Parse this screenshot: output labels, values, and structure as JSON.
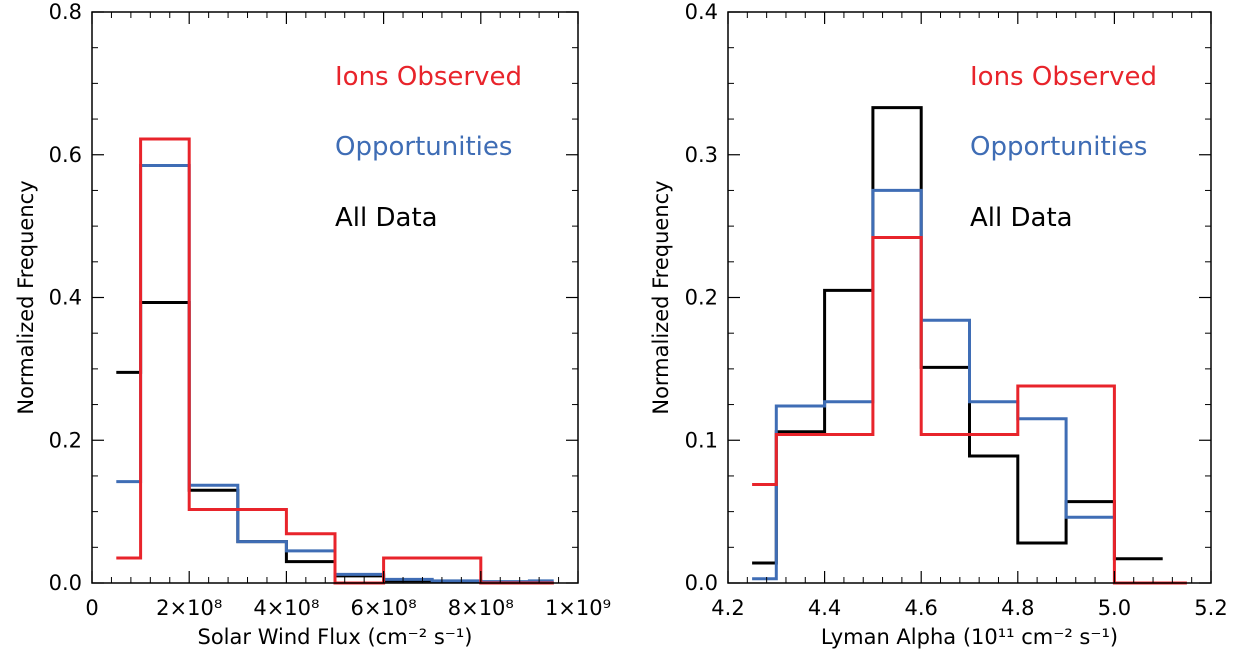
{
  "chart_data": [
    {
      "type": "step-histogram",
      "xlabel": "Solar Wind Flux (cm⁻² s⁻¹)",
      "ylabel": "Normalized Frequency",
      "xlim": [
        0,
        1000000000
      ],
      "ylim": [
        0,
        0.8
      ],
      "xticks": [
        {
          "value": 0,
          "label": "0"
        },
        {
          "value": 200000000,
          "label": "2×10⁸"
        },
        {
          "value": 400000000,
          "label": "4×10⁸"
        },
        {
          "value": 600000000,
          "label": "6×10⁸"
        },
        {
          "value": 800000000,
          "label": "8×10⁸"
        },
        {
          "value": 1000000000,
          "label": "1×10⁹"
        }
      ],
      "yticks": [
        {
          "value": 0,
          "label": "0.0"
        },
        {
          "value": 0.2,
          "label": "0.2"
        },
        {
          "value": 0.4,
          "label": "0.4"
        },
        {
          "value": 0.6,
          "label": "0.6"
        },
        {
          "value": 0.8,
          "label": "0.8"
        }
      ],
      "legend": [
        "Ions Observed",
        "Opportunities",
        "All Data"
      ],
      "bin_edges": [
        50000000,
        100000000,
        200000000,
        300000000,
        400000000,
        500000000,
        600000000,
        700000000,
        800000000,
        900000000,
        950000000
      ],
      "series": [
        {
          "name": "All Data",
          "color": "#000000",
          "values": [
            0.295,
            0.393,
            0.13,
            0.058,
            0.03,
            0.01,
            0.003,
            0.002,
            0.001,
            0.0
          ]
        },
        {
          "name": "Opportunities",
          "color": "#3f6db5",
          "values": [
            0.142,
            0.585,
            0.137,
            0.058,
            0.045,
            0.012,
            0.005,
            0.003,
            0.002,
            0.003
          ]
        },
        {
          "name": "Ions Observed",
          "color": "#e8242b",
          "values": [
            0.035,
            0.622,
            0.103,
            0.103,
            0.069,
            0.0,
            0.035,
            0.035,
            0.0,
            0.0
          ]
        }
      ]
    },
    {
      "type": "step-histogram",
      "xlabel": "Lyman Alpha (10¹¹ cm⁻² s⁻¹)",
      "ylabel": "Normalized Frequency",
      "xlim": [
        4.2,
        5.2
      ],
      "ylim": [
        0,
        0.4
      ],
      "xticks": [
        {
          "value": 4.2,
          "label": "4.2"
        },
        {
          "value": 4.4,
          "label": "4.4"
        },
        {
          "value": 4.6,
          "label": "4.6"
        },
        {
          "value": 4.8,
          "label": "4.8"
        },
        {
          "value": 5.0,
          "label": "5.0"
        },
        {
          "value": 5.2,
          "label": "5.2"
        }
      ],
      "yticks": [
        {
          "value": 0,
          "label": "0.0"
        },
        {
          "value": 0.1,
          "label": "0.1"
        },
        {
          "value": 0.2,
          "label": "0.2"
        },
        {
          "value": 0.3,
          "label": "0.3"
        },
        {
          "value": 0.4,
          "label": "0.4"
        }
      ],
      "legend": [
        "Ions Observed",
        "Opportunities",
        "All Data"
      ],
      "series": [
        {
          "name": "All Data",
          "color": "#000000",
          "bin_edges": [
            4.25,
            4.3,
            4.4,
            4.5,
            4.6,
            4.7,
            4.8,
            4.9,
            5.0,
            5.1
          ],
          "values": [
            0.014,
            0.106,
            0.205,
            0.333,
            0.151,
            0.089,
            0.028,
            0.057,
            0.017
          ]
        },
        {
          "name": "Opportunities",
          "color": "#3f6db5",
          "bin_edges": [
            4.25,
            4.3,
            4.4,
            4.5,
            4.6,
            4.7,
            4.8,
            4.9,
            5.0
          ],
          "values": [
            0.003,
            0.124,
            0.127,
            0.275,
            0.184,
            0.127,
            0.115,
            0.046
          ]
        },
        {
          "name": "Ions Observed",
          "color": "#e8242b",
          "bin_edges": [
            4.25,
            4.3,
            4.5,
            4.6,
            4.8,
            5.0,
            5.15
          ],
          "values": [
            0.069,
            0.104,
            0.242,
            0.104,
            0.138,
            0.0
          ]
        }
      ]
    }
  ]
}
